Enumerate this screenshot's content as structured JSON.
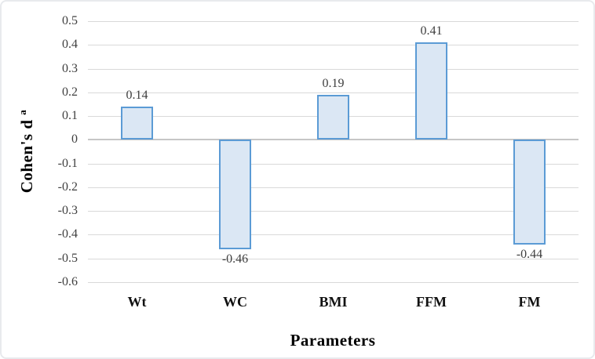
{
  "figure": {
    "background": "#ffffff",
    "border_color": "#e8eaed"
  },
  "chart_data": {
    "type": "bar",
    "title": "",
    "xlabel": "Parameters",
    "ylabel": "Cohen's d",
    "ylabel_superscript": "a",
    "categories": [
      "Wt",
      "WC",
      "BMI",
      "FFM",
      "FM"
    ],
    "values": [
      0.14,
      -0.46,
      0.19,
      0.41,
      -0.44
    ],
    "value_labels": [
      "0.14",
      "-0.46",
      "0.19",
      "0.41",
      "-0.44"
    ],
    "ylim": [
      -0.6,
      0.5
    ],
    "ytick_step": 0.1,
    "yticks": [
      "0.5",
      "0.4",
      "0.3",
      "0.2",
      "0.1",
      "0",
      "-0.1",
      "-0.2",
      "-0.3",
      "-0.4",
      "-0.5",
      "-0.6"
    ],
    "grid": true,
    "legend_position": "none",
    "colors": {
      "bar_fill": "#dbe7f4",
      "bar_border": "#5b9bd5",
      "gridline": "#d9d9d9",
      "zero_axis_line": "#c6c6c6",
      "tick_label": "#404040",
      "value_label": "#3d3d3d",
      "category_label": "#111111",
      "axis_title": "#000000"
    }
  }
}
